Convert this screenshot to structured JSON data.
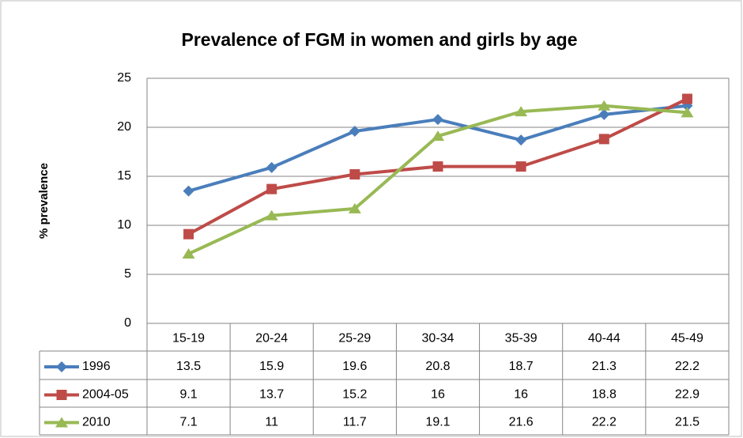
{
  "chart_data": {
    "type": "line",
    "title": "Prevalence of FGM in women and girls by age",
    "y_label": "% prevalence",
    "categories": [
      "15-19",
      "20-24",
      "25-29",
      "30-34",
      "35-39",
      "40-44",
      "45-49"
    ],
    "series": [
      {
        "name": "1996",
        "color": "#4a7ebb",
        "marker": "diamond",
        "values": [
          13.5,
          15.9,
          19.6,
          20.8,
          18.7,
          21.3,
          22.2
        ]
      },
      {
        "name": "2004-05",
        "color": "#be4b48",
        "marker": "square",
        "values": [
          9.1,
          13.7,
          15.2,
          16,
          16,
          18.8,
          22.9
        ]
      },
      {
        "name": "2010",
        "color": "#98b954",
        "marker": "triangle",
        "values": [
          7.1,
          11,
          11.7,
          19.1,
          21.6,
          22.2,
          21.5
        ]
      }
    ],
    "ylim": [
      0,
      25
    ],
    "yticks": [
      0,
      5,
      10,
      15,
      20,
      25
    ],
    "grid": true,
    "data_table": true
  }
}
